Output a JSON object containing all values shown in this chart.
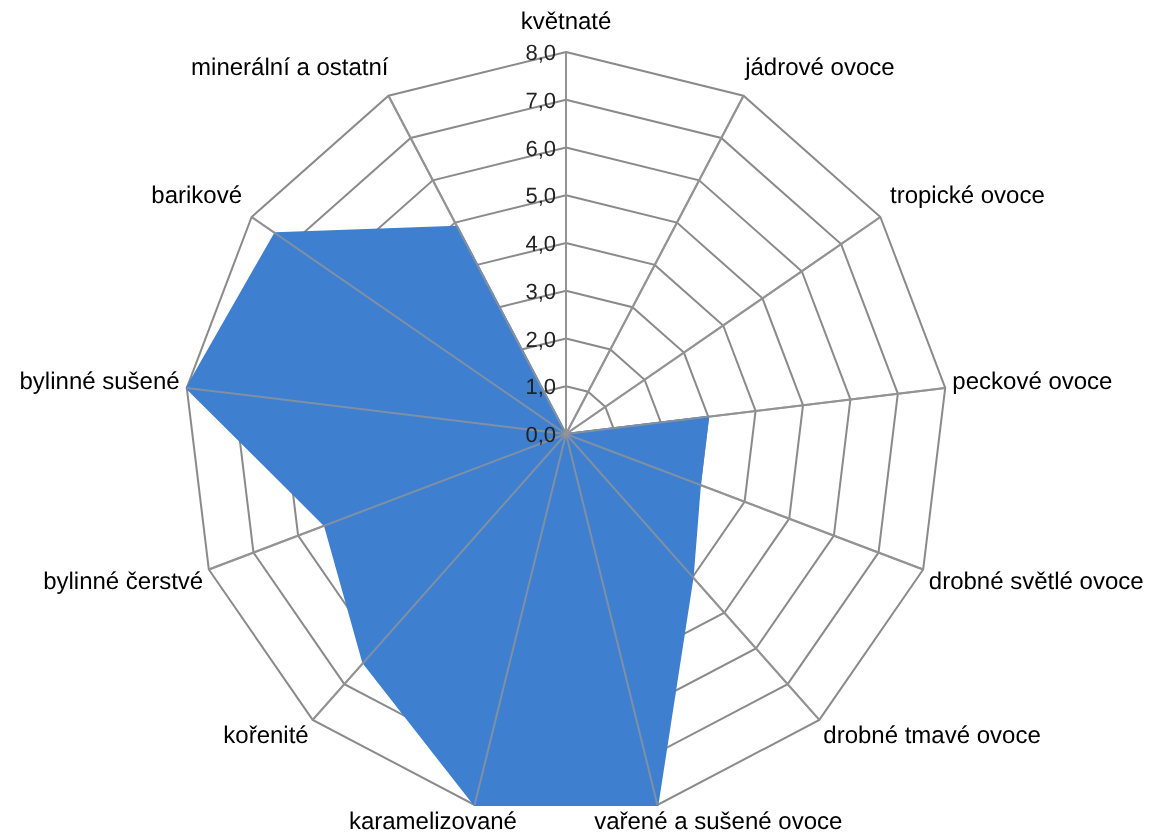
{
  "chart_data": {
    "type": "radar",
    "categories": [
      "květnaté",
      "jádrové ovoce",
      "tropické ovoce",
      "peckové ovoce",
      "drobné světlé ovoce",
      "drobné tmavé ovoce",
      "vařené a sušené ovoce",
      "karamelizované",
      "kořenité",
      "bylinné čerstvé",
      "bylinné sušené",
      "barikové",
      "minerální a ostatní"
    ],
    "series": [
      {
        "color": "#3f7fd0",
        "values": [
          0,
          0,
          0,
          3.0,
          3.0,
          4.0,
          8,
          8,
          6.4,
          5.4,
          8,
          7.4,
          4.9
        ]
      }
    ],
    "ylim": [
      0,
      8
    ],
    "yticks": [
      {
        "value": 0,
        "label": "0,0"
      },
      {
        "value": 1,
        "label": "1,0"
      },
      {
        "value": 2,
        "label": "2,0"
      },
      {
        "value": 3,
        "label": "3,0"
      },
      {
        "value": 4,
        "label": "4,0"
      },
      {
        "value": 5,
        "label": "5,0"
      },
      {
        "value": 6,
        "label": "6,0"
      },
      {
        "value": 7,
        "label": "7,0"
      },
      {
        "value": 8,
        "label": "8,0"
      }
    ],
    "grid": true
  }
}
